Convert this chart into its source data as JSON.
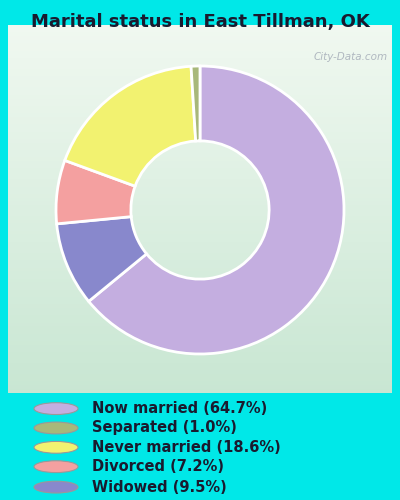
{
  "title": "Marital status in East Tillman, OK",
  "slices": [
    64.7,
    9.5,
    7.2,
    18.6,
    1.0
  ],
  "labels": [
    "Now married (64.7%)",
    "Separated (1.0%)",
    "Never married (18.6%)",
    "Divorced (7.2%)",
    "Widowed (9.5%)"
  ],
  "legend_colors": [
    "#c4aee0",
    "#a8b87a",
    "#f2f270",
    "#f4a0a0",
    "#8888cc"
  ],
  "pie_colors": [
    "#c4aee0",
    "#8888cc",
    "#f4a0a0",
    "#f2f270",
    "#a8b87a"
  ],
  "bg_outer": "#00e8e8",
  "bg_chart_start": "#e8f5e9",
  "bg_chart_end": "#d0ece0",
  "title_fontsize": 13,
  "legend_fontsize": 10.5,
  "start_angle": 90,
  "watermark": "City-Data.com"
}
